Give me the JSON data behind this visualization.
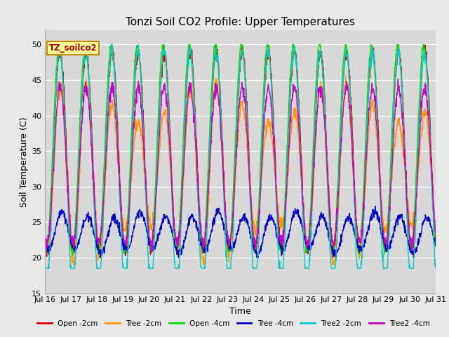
{
  "title": "Tonzi Soil CO2 Profile: Upper Temperatures",
  "xlabel": "Time",
  "ylabel": "Soil Temperature (C)",
  "ylim": [
    15,
    52
  ],
  "yticks": [
    15,
    20,
    25,
    30,
    35,
    40,
    45,
    50
  ],
  "xlim": [
    0,
    15
  ],
  "xtick_labels": [
    "Jul 16",
    "Jul 17",
    "Jul 18",
    "Jul 19",
    "Jul 20",
    "Jul 21",
    "Jul 22",
    "Jul 23",
    "Jul 24",
    "Jul 25",
    "Jul 26",
    "Jul 27",
    "Jul 28",
    "Jul 29",
    "Jul 30",
    "Jul 31"
  ],
  "series_names": [
    "Open -2cm",
    "Tree -2cm",
    "Open -4cm",
    "Tree -4cm",
    "Tree2 -2cm",
    "Tree2 -4cm"
  ],
  "series_colors": [
    "#dd0000",
    "#ff9900",
    "#00dd00",
    "#0000cc",
    "#00cccc",
    "#cc00cc"
  ],
  "line_width": 1.0,
  "fig_bg_color": "#e8e8e8",
  "plot_bg_color": "#d8d8d8",
  "grid_color": "#ffffff",
  "label_box_color": "#ffff99",
  "label_box_edge": "#cc8800",
  "label_text": "TZ_soilco2",
  "label_text_color": "#aa0000",
  "num_days": 15,
  "n_points": 1500
}
